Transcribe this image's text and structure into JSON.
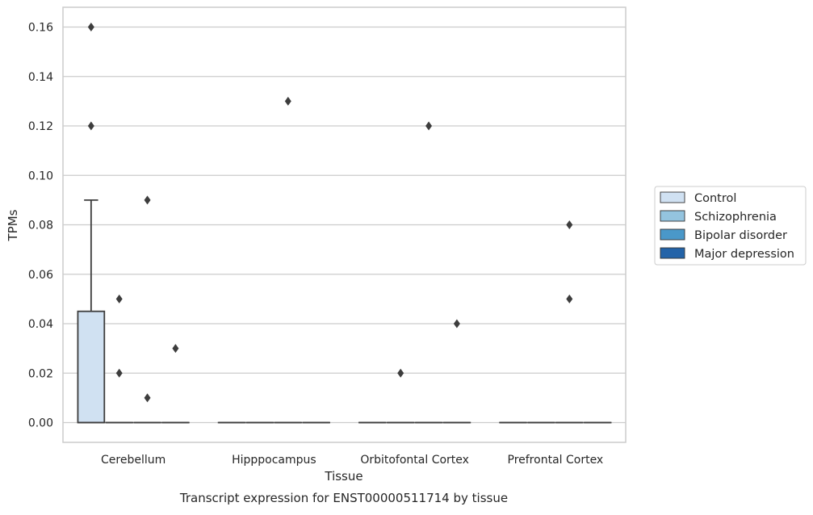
{
  "chart_data": {
    "type": "box",
    "caption": "Transcript expression for ENST00000511714 by tissue",
    "xlabel": "Tissue",
    "ylabel": "TPMs",
    "ylim": [
      -0.008,
      0.168
    ],
    "yticks": [
      0.0,
      0.02,
      0.04,
      0.06,
      0.08,
      0.1,
      0.12,
      0.14,
      0.16
    ],
    "ytick_labels": [
      "0.00",
      "0.02",
      "0.04",
      "0.06",
      "0.08",
      "0.10",
      "0.12",
      "0.14",
      "0.16"
    ],
    "grid": "horizontal",
    "legend_position": "right",
    "categories": [
      "Cerebellum",
      "Hipppocampus",
      "Orbitofontal Cortex",
      "Prefrontal Cortex"
    ],
    "series": [
      {
        "name": "Control",
        "color": "#d0e1f2",
        "boxes": [
          {
            "q1": 0.0,
            "median": 0.0,
            "q3": 0.045,
            "whisker_low": 0.0,
            "whisker_high": 0.09,
            "outliers": [
              0.16,
              0.12
            ]
          },
          {
            "q1": 0.0,
            "median": 0.0,
            "q3": 0.0,
            "whisker_low": 0.0,
            "whisker_high": 0.0,
            "outliers": []
          },
          {
            "q1": 0.0,
            "median": 0.0,
            "q3": 0.0,
            "whisker_low": 0.0,
            "whisker_high": 0.0,
            "outliers": []
          },
          {
            "q1": 0.0,
            "median": 0.0,
            "q3": 0.0,
            "whisker_low": 0.0,
            "whisker_high": 0.0,
            "outliers": []
          }
        ]
      },
      {
        "name": "Schizophrenia",
        "color": "#94c4df",
        "boxes": [
          {
            "q1": 0.0,
            "median": 0.0,
            "q3": 0.0,
            "whisker_low": 0.0,
            "whisker_high": 0.0,
            "outliers": [
              0.05,
              0.02
            ]
          },
          {
            "q1": 0.0,
            "median": 0.0,
            "q3": 0.0,
            "whisker_low": 0.0,
            "whisker_high": 0.0,
            "outliers": []
          },
          {
            "q1": 0.0,
            "median": 0.0,
            "q3": 0.0,
            "whisker_low": 0.0,
            "whisker_high": 0.0,
            "outliers": [
              0.02
            ]
          },
          {
            "q1": 0.0,
            "median": 0.0,
            "q3": 0.0,
            "whisker_low": 0.0,
            "whisker_high": 0.0,
            "outliers": []
          }
        ]
      },
      {
        "name": "Bipolar disorder",
        "color": "#4a98c9",
        "boxes": [
          {
            "q1": 0.0,
            "median": 0.0,
            "q3": 0.0,
            "whisker_low": 0.0,
            "whisker_high": 0.0,
            "outliers": [
              0.09,
              0.01
            ]
          },
          {
            "q1": 0.0,
            "median": 0.0,
            "q3": 0.0,
            "whisker_low": 0.0,
            "whisker_high": 0.0,
            "outliers": [
              0.13
            ]
          },
          {
            "q1": 0.0,
            "median": 0.0,
            "q3": 0.0,
            "whisker_low": 0.0,
            "whisker_high": 0.0,
            "outliers": [
              0.12
            ]
          },
          {
            "q1": 0.0,
            "median": 0.0,
            "q3": 0.0,
            "whisker_low": 0.0,
            "whisker_high": 0.0,
            "outliers": [
              0.08,
              0.05
            ]
          }
        ]
      },
      {
        "name": "Major depression",
        "color": "#2363a8",
        "boxes": [
          {
            "q1": 0.0,
            "median": 0.0,
            "q3": 0.0,
            "whisker_low": 0.0,
            "whisker_high": 0.0,
            "outliers": [
              0.03
            ]
          },
          {
            "q1": 0.0,
            "median": 0.0,
            "q3": 0.0,
            "whisker_low": 0.0,
            "whisker_high": 0.0,
            "outliers": []
          },
          {
            "q1": 0.0,
            "median": 0.0,
            "q3": 0.0,
            "whisker_low": 0.0,
            "whisker_high": 0.0,
            "outliers": [
              0.04
            ]
          },
          {
            "q1": 0.0,
            "median": 0.0,
            "q3": 0.0,
            "whisker_low": 0.0,
            "whisker_high": 0.0,
            "outliers": []
          }
        ]
      }
    ],
    "colors": {
      "grid": "#cccccc",
      "frame": "#cccccc",
      "box_edge": "#3d3d3d",
      "outlier": "#3d3d3d"
    }
  }
}
